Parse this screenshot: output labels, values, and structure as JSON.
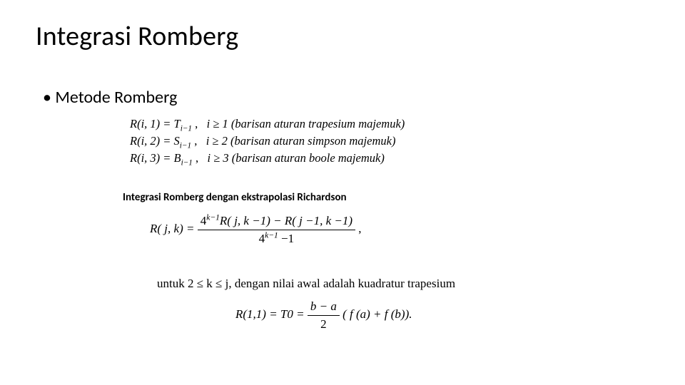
{
  "title": "Integrasi Romberg",
  "bullet": "Metode Romberg",
  "defs": {
    "r1_lhs": "R(i, 1) = T",
    "r1_sub": "i−1",
    "r1_sep": " ,",
    "r1_cond": "i ≥ 1 (barisan aturan trapesium majemuk)",
    "r2_lhs": "R(i, 2) = S",
    "r2_sub": "i−1",
    "r2_sep": " ,",
    "r2_cond": "i ≥ 2 (barisan aturan simpson majemuk)",
    "r3_lhs": "R(i, 3) = B",
    "r3_sub": "i−1",
    "r3_sep": " ,",
    "r3_cond": "i ≥ 3 (barisan aturan boole majemuk)"
  },
  "subheading": "Integrasi Romberg dengan ekstrapolasi Richardson",
  "richardson": {
    "lhs": "R( j, k) = ",
    "num_a": "4",
    "num_exp": "k−1",
    "num_b": "R( j, k −1) − R( j −1, k −1)",
    "den_a": "4",
    "den_exp": "k−1",
    "den_b": " −1",
    "trail": ","
  },
  "cond_line": "untuk 2 ≤ k ≤ j, dengan nilai awal adalah kuadratur trapesium",
  "initial": {
    "lhs": "R(1,1) = T0 = ",
    "num": "b − a",
    "den": "2",
    "rhs": "( f (a) + f (b))."
  }
}
